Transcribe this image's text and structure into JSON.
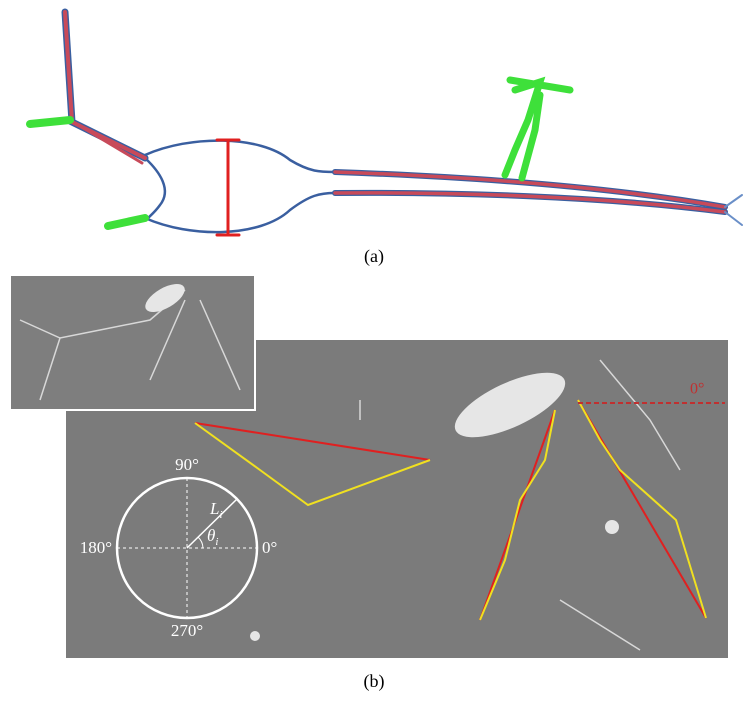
{
  "panel_a": {
    "label": "(a)"
  },
  "panel_b": {
    "label": "(b)",
    "polar": {
      "top": "90°",
      "left": "180°",
      "right": "0°",
      "bottom": "270°",
      "length": "L",
      "length_sub": "i",
      "angle": "θ",
      "angle_sub": "i"
    },
    "reference_angle": "0°"
  }
}
